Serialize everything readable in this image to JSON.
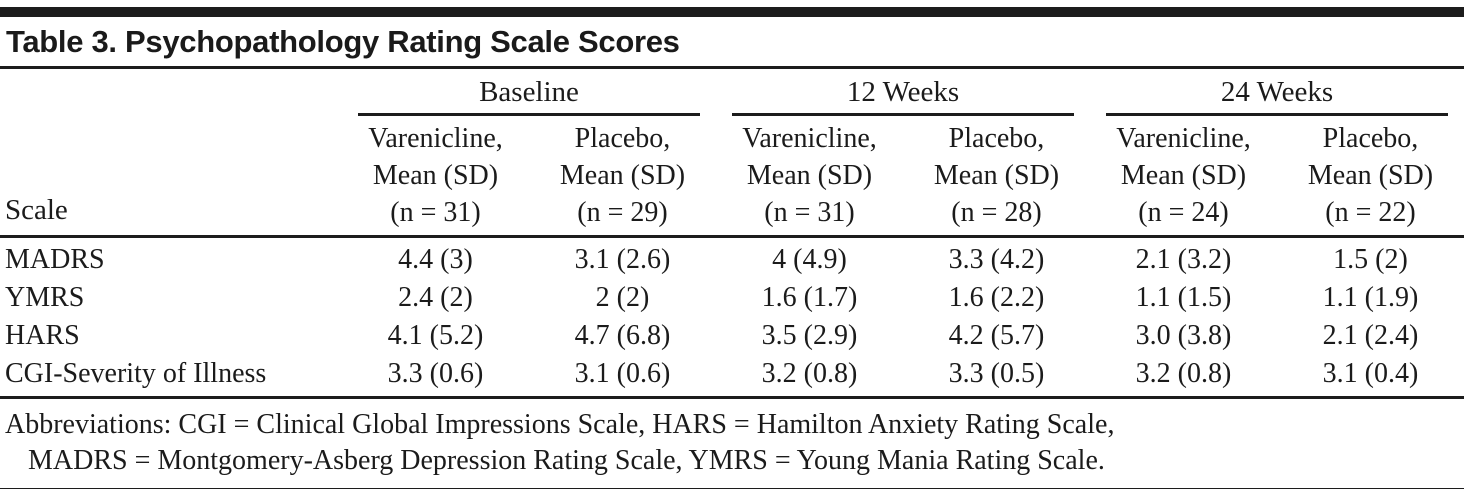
{
  "title": "Table 3. Psychopathology Rating Scale Scores",
  "table": {
    "row_header_label": "Scale",
    "groups": [
      {
        "label": "Baseline",
        "columns": [
          {
            "drug": "Varenicline,",
            "measure": "Mean (SD)",
            "n": "(n = 31)"
          },
          {
            "drug": "Placebo,",
            "measure": "Mean (SD)",
            "n": "(n = 29)"
          }
        ]
      },
      {
        "label": "12 Weeks",
        "columns": [
          {
            "drug": "Varenicline,",
            "measure": "Mean (SD)",
            "n": "(n = 31)"
          },
          {
            "drug": "Placebo,",
            "measure": "Mean (SD)",
            "n": "(n = 28)"
          }
        ]
      },
      {
        "label": "24 Weeks",
        "columns": [
          {
            "drug": "Varenicline,",
            "measure": "Mean (SD)",
            "n": "(n = 24)"
          },
          {
            "drug": "Placebo,",
            "measure": "Mean (SD)",
            "n": "(n = 22)"
          }
        ]
      }
    ],
    "rows": [
      {
        "scale": "MADRS",
        "values": [
          "4.4 (3)",
          "3.1 (2.6)",
          "4 (4.9)",
          "3.3 (4.2)",
          "2.1 (3.2)",
          "1.5 (2)"
        ]
      },
      {
        "scale": "YMRS",
        "values": [
          "2.4 (2)",
          "2 (2)",
          "1.6 (1.7)",
          "1.6 (2.2)",
          "1.1 (1.5)",
          "1.1 (1.9)"
        ]
      },
      {
        "scale": "HARS",
        "values": [
          "4.1 (5.2)",
          "4.7 (6.8)",
          "3.5 (2.9)",
          "4.2 (5.7)",
          "3.0 (3.8)",
          "2.1 (2.4)"
        ]
      },
      {
        "scale": "CGI-Severity of Illness",
        "values": [
          "3.3 (0.6)",
          "3.1 (0.6)",
          "3.2 (0.8)",
          "3.3 (0.5)",
          "3.2 (0.8)",
          "3.1 (0.4)"
        ]
      }
    ]
  },
  "footnote": {
    "line1": "Abbreviations: CGI = Clinical Global Impressions Scale, HARS = Hamilton Anxiety Rating Scale,",
    "line2": "MADRS = Montgomery-Asberg Depression Rating Scale, YMRS = Young Mania Rating Scale."
  },
  "colors": {
    "rule": "#1c1c1c",
    "text": "#1b1b1b",
    "background": "#ffffff"
  }
}
